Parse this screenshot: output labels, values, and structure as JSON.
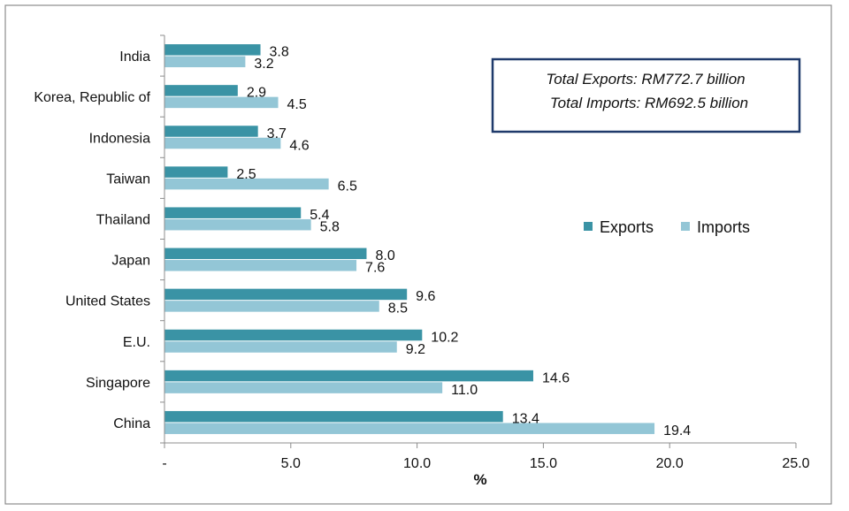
{
  "chart_data": {
    "type": "bar",
    "orientation": "horizontal",
    "title": "",
    "xlabel": "%",
    "ylabel": "",
    "xlim": [
      0,
      25
    ],
    "x_ticks": [
      "-",
      "5.0",
      "10.0",
      "15.0",
      "20.0",
      "25.0"
    ],
    "categories": [
      "India",
      "Korea, Republic of",
      "Indonesia",
      "Taiwan",
      "Thailand",
      "Japan",
      "United States",
      "E.U.",
      "Singapore",
      "China"
    ],
    "series": [
      {
        "name": "Exports",
        "color": "#3A93A5",
        "values": [
          3.8,
          2.9,
          3.7,
          2.5,
          5.4,
          8.0,
          9.6,
          10.2,
          14.6,
          13.4
        ],
        "labels": [
          "3.8",
          "2.9",
          "3.7",
          "2.5",
          "5.4",
          "8.0",
          "9.6",
          "10.2",
          "14.6",
          "13.4"
        ]
      },
      {
        "name": "Imports",
        "color": "#93C6D6",
        "values": [
          3.2,
          4.5,
          4.6,
          6.5,
          5.8,
          7.6,
          8.5,
          9.2,
          11.0,
          19.4
        ],
        "labels": [
          "3.2",
          "4.5",
          "4.6",
          "6.5",
          "5.8",
          "7.6",
          "8.5",
          "9.2",
          "11.0",
          "19.4"
        ]
      }
    ],
    "legend": {
      "position": "right",
      "entries": [
        "Exports",
        "Imports"
      ]
    },
    "annotation": {
      "lines": [
        "Total Exports: RM772.7 billion",
        "Total Imports: RM692.5 billion"
      ],
      "border_color": "#1F3A6B"
    },
    "grid": false
  }
}
